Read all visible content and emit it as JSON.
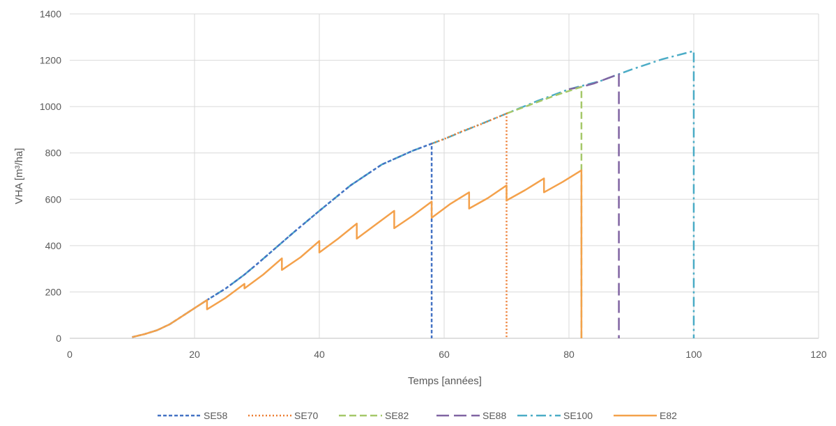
{
  "chart_data": {
    "type": "line",
    "xlabel": "Temps [années]",
    "ylabel": "VHA [m³/ha]",
    "xlim": [
      0,
      120
    ],
    "ylim": [
      0,
      1400
    ],
    "xticks": [
      0,
      20,
      40,
      60,
      80,
      100,
      120
    ],
    "yticks": [
      0,
      200,
      400,
      600,
      800,
      1000,
      1200,
      1400
    ],
    "grid": true,
    "legend_position": "bottom",
    "series": [
      {
        "name": "SE58",
        "color": "#4472c4",
        "style": "short-dash",
        "x": [
          10,
          12,
          14,
          16,
          18,
          20,
          22,
          25,
          28,
          30,
          33,
          36,
          40,
          45,
          50,
          55,
          58,
          58
        ],
        "y": [
          5,
          18,
          35,
          60,
          95,
          130,
          165,
          215,
          275,
          320,
          390,
          460,
          550,
          660,
          750,
          810,
          840,
          0
        ]
      },
      {
        "name": "SE70",
        "color": "#ed7d31",
        "style": "dotted",
        "x": [
          58,
          60,
          63,
          66,
          70,
          70
        ],
        "y": [
          840,
          860,
          895,
          925,
          970,
          0
        ]
      },
      {
        "name": "SE82",
        "color": "#a5c869",
        "style": "dash",
        "x": [
          70,
          74,
          78,
          82,
          82
        ],
        "y": [
          970,
          1010,
          1050,
          1085,
          0
        ]
      },
      {
        "name": "SE88",
        "color": "#8064a2",
        "style": "long-dash",
        "x": [
          80,
          82,
          84,
          86,
          88,
          88
        ],
        "y": [
          1075,
          1085,
          1100,
          1120,
          1140,
          0
        ]
      },
      {
        "name": "SE100",
        "color": "#4bacc6",
        "style": "dash-dot",
        "x": [
          10,
          12,
          14,
          16,
          18,
          20,
          22,
          25,
          28,
          30,
          33,
          36,
          40,
          45,
          50,
          55,
          60,
          65,
          70,
          75,
          80,
          85,
          90,
          95,
          100,
          100
        ],
        "y": [
          5,
          18,
          35,
          60,
          95,
          130,
          165,
          215,
          275,
          320,
          390,
          460,
          550,
          660,
          750,
          810,
          860,
          915,
          970,
          1025,
          1075,
          1110,
          1160,
          1205,
          1240,
          0
        ]
      },
      {
        "name": "E82",
        "color": "#f4a14b",
        "style": "solid",
        "x": [
          10,
          12,
          14,
          16,
          18,
          20,
          22,
          22,
          25,
          28,
          28,
          31,
          34,
          34,
          37,
          40,
          40,
          43,
          46,
          46,
          49,
          52,
          52,
          55,
          58,
          58,
          61,
          64,
          64,
          67,
          70,
          70,
          73,
          76,
          76,
          79,
          82,
          82
        ],
        "y": [
          5,
          18,
          35,
          60,
          95,
          130,
          165,
          125,
          175,
          235,
          215,
          275,
          345,
          295,
          350,
          420,
          370,
          430,
          495,
          430,
          490,
          550,
          475,
          530,
          590,
          520,
          580,
          630,
          560,
          605,
          660,
          595,
          640,
          690,
          630,
          675,
          725,
          0
        ]
      }
    ]
  }
}
